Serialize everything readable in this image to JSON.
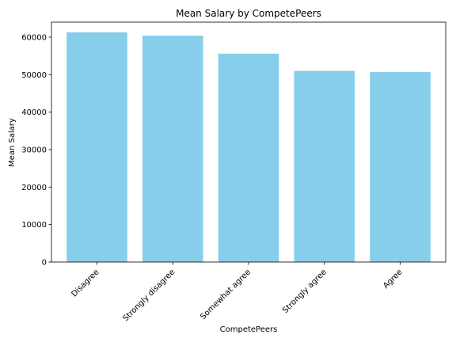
{
  "chart_data": {
    "type": "bar",
    "title": "Mean Salary by CompetePeers",
    "xlabel": "CompetePeers",
    "ylabel": "Mean Salary",
    "categories": [
      "Disagree",
      "Strongly disagree",
      "Somewhat agree",
      "Strongly agree",
      "Agree"
    ],
    "values": [
      61300,
      60400,
      55600,
      51000,
      50700
    ],
    "ylim": [
      0,
      64000
    ],
    "yticks": [
      0,
      10000,
      20000,
      30000,
      40000,
      50000,
      60000
    ],
    "ytick_labels": [
      "0",
      "10000",
      "20000",
      "30000",
      "40000",
      "50000",
      "60000"
    ],
    "bar_color": "#87ceeb",
    "grid": false,
    "legend": "none"
  }
}
